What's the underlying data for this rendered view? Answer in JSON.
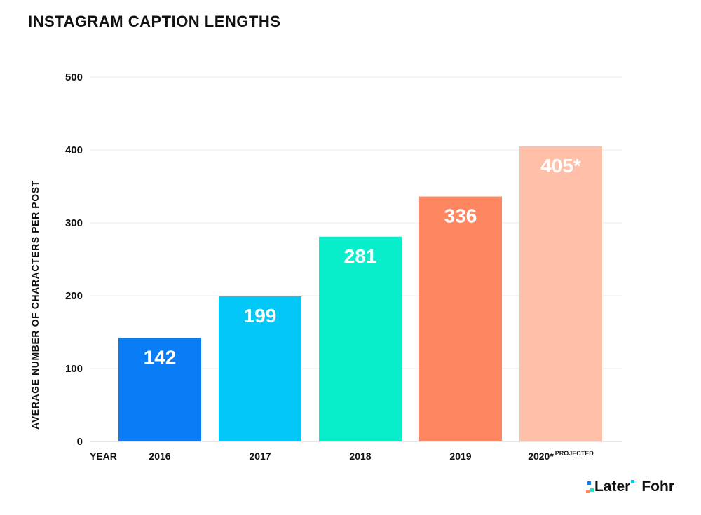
{
  "chart_data": {
    "type": "bar",
    "title": "INSTAGRAM CAPTION LENGTHS",
    "ylabel": "AVERAGE NUMBER OF CHARACTERS PER POST",
    "xlabel": "YEAR",
    "ylim": [
      0,
      500
    ],
    "yticks": [
      0,
      100,
      200,
      300,
      400,
      500
    ],
    "grid": true,
    "categories": [
      "2016",
      "2017",
      "2018",
      "2019",
      "2020*"
    ],
    "category_notes": [
      "",
      "",
      "",
      "",
      "PROJECTED"
    ],
    "values": [
      142,
      199,
      281,
      336,
      405
    ],
    "value_labels": [
      "142",
      "199",
      "281",
      "336",
      "405*"
    ],
    "colors": [
      "#0a7cf5",
      "#03c8f7",
      "#08eecb",
      "#fe8660",
      "#ffbfa8"
    ]
  },
  "logos": {
    "later": "Later",
    "fohr": "Fohr"
  }
}
